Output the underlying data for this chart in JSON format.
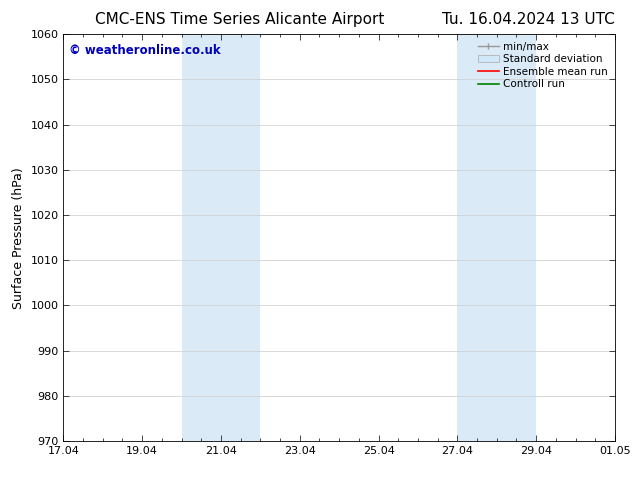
{
  "title_left": "CMC-ENS Time Series Alicante Airport",
  "title_right": "Tu. 16.04.2024 13 UTC",
  "ylabel": "Surface Pressure (hPa)",
  "ylim": [
    970,
    1060
  ],
  "yticks": [
    970,
    980,
    990,
    1000,
    1010,
    1020,
    1030,
    1040,
    1050,
    1060
  ],
  "xtick_labels": [
    "17.04",
    "19.04",
    "21.04",
    "23.04",
    "25.04",
    "27.04",
    "29.04",
    "01.05"
  ],
  "xtick_positions": [
    0,
    2,
    4,
    6,
    8,
    10,
    12,
    14
  ],
  "xlim": [
    0,
    14
  ],
  "shaded_regions": [
    {
      "start": 3,
      "end": 5,
      "color": "#daeaf7"
    },
    {
      "start": 10,
      "end": 12,
      "color": "#daeaf7"
    }
  ],
  "watermark": "© weatheronline.co.uk",
  "watermark_color": "#0000bb",
  "legend_entries": [
    {
      "label": "min/max",
      "type": "minmax",
      "color": "#999999"
    },
    {
      "label": "Standard deviation",
      "type": "patch",
      "color": "#d0e8f8"
    },
    {
      "label": "Ensemble mean run",
      "type": "line",
      "color": "#ff0000"
    },
    {
      "label": "Controll run",
      "type": "line",
      "color": "#008000"
    }
  ],
  "bg_color": "#ffffff",
  "grid_color": "#cccccc",
  "title_fontsize": 11,
  "ylabel_fontsize": 9,
  "tick_fontsize": 8,
  "legend_fontsize": 7.5
}
